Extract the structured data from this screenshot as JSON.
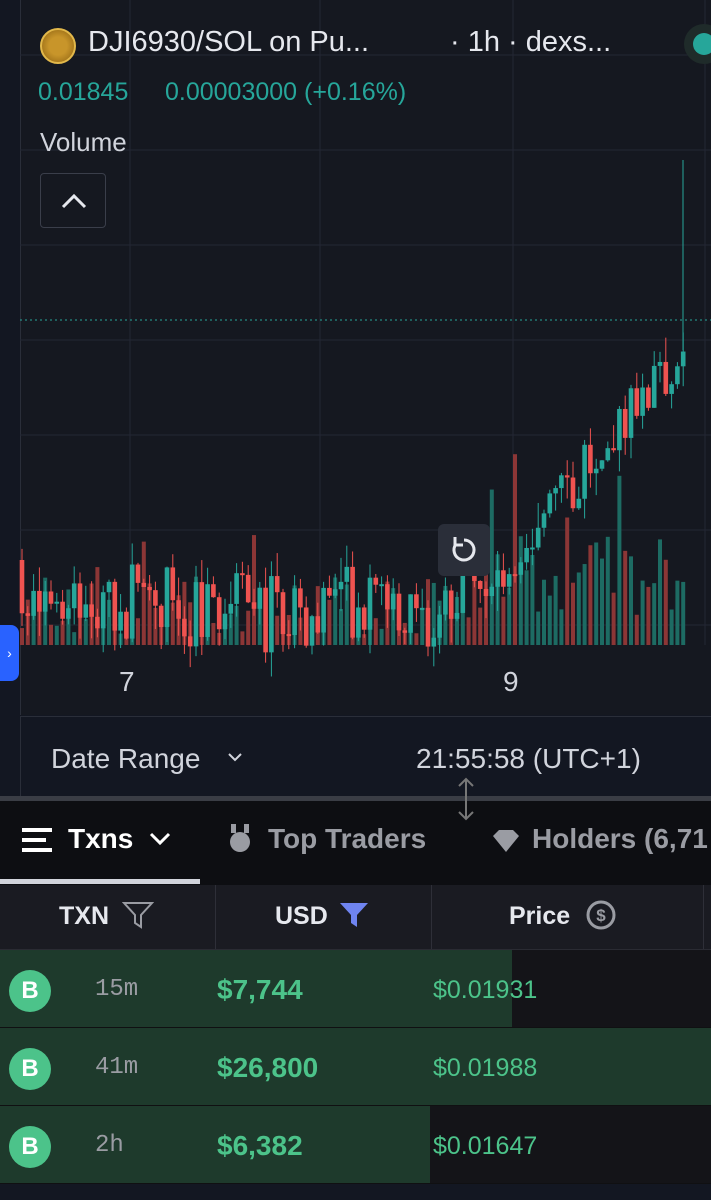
{
  "header": {
    "pair": "DJI6930/SOL on Pu...",
    "interval": "· 1h · dexs...",
    "price": "0.01845",
    "change": "0.00003000 (+0.16%)",
    "indicator": "Volume"
  },
  "chart": {
    "x_labels": [
      "7",
      "9"
    ]
  },
  "footer": {
    "date_range": "Date Range",
    "clock": "21:55:58 (UTC+1)"
  },
  "tabs": [
    "Txns",
    "Top Traders",
    "Holders (6,71"
  ],
  "table": {
    "headers": [
      "TXN",
      "USD",
      "Price"
    ],
    "rows": [
      [
        "B",
        "15m",
        "$7,744",
        "$0.01931"
      ],
      [
        "B",
        "41m",
        "$26,800",
        "$0.01988"
      ],
      [
        "B",
        "2h",
        "$6,382",
        "$0.01647"
      ]
    ]
  }
}
